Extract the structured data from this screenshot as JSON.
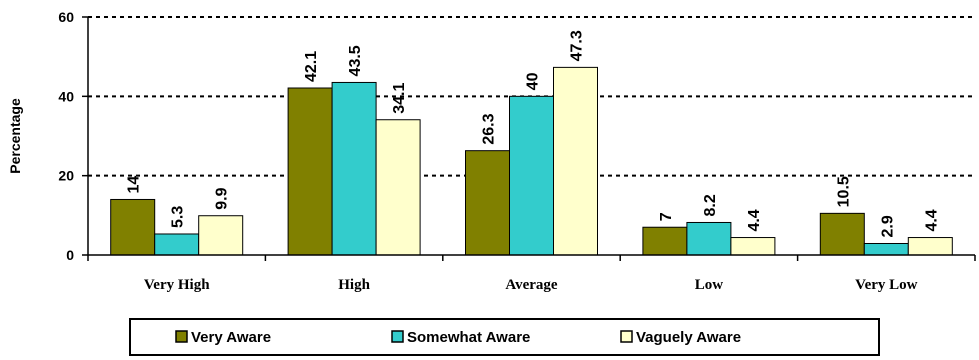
{
  "chart_data": {
    "type": "bar",
    "title": "",
    "xlabel": "",
    "ylabel": "Percentage",
    "ylim": [
      0,
      60
    ],
    "yticks": [
      "0",
      "20",
      "40",
      "60"
    ],
    "grid": true,
    "legend_position": "bottom",
    "categories": [
      "Very High",
      "High",
      "Average",
      "Low",
      "Very Low"
    ],
    "series": [
      {
        "name": "Very Aware",
        "color": "#808000",
        "values": [
          14,
          42.1,
          26.3,
          7,
          10.5
        ],
        "labels": [
          "14",
          "42.1",
          "26.3",
          "7",
          "10.5"
        ]
      },
      {
        "name": "Somewhat Aware",
        "color": "#33CCCC",
        "values": [
          5.3,
          43.5,
          40,
          8.2,
          2.9
        ],
        "labels": [
          "5.3",
          "43.5",
          "40",
          "8.2",
          "2.9"
        ]
      },
      {
        "name": "Vaguely Aware",
        "color": "#FFFFCC",
        "values": [
          9.9,
          34.1,
          47.3,
          4.4,
          4.4
        ],
        "labels": [
          "9.9",
          "34.1",
          "47.3",
          "4.4",
          "4.4"
        ]
      }
    ]
  }
}
